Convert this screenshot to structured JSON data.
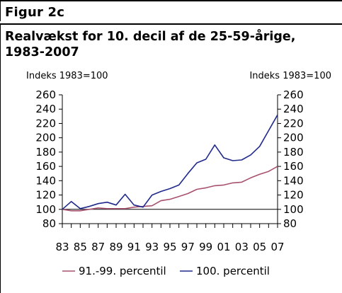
{
  "figure_label": "Figur 2c",
  "title": "Realvækst for 10. decil af de 25-59-årige,\n1983-2007",
  "colors": {
    "series_1": "#a8516e",
    "series_2": "#1f2a8c",
    "axis": "#000000"
  },
  "chart_data": {
    "type": "line",
    "title": "Realvækst for 10. decil af de 25-59-årige, 1983-2007",
    "left_unit_label": "Indeks 1983=100",
    "right_unit_label": "Indeks 1983=100",
    "x": [
      1983,
      1984,
      1985,
      1986,
      1987,
      1988,
      1989,
      1990,
      1991,
      1992,
      1993,
      1994,
      1995,
      1996,
      1997,
      1998,
      1999,
      2000,
      2001,
      2002,
      2003,
      2004,
      2005,
      2006,
      2007
    ],
    "x_tick_labels": [
      "83",
      "85",
      "87",
      "89",
      "91",
      "93",
      "95",
      "97",
      "99",
      "01",
      "03",
      "05",
      "07"
    ],
    "y_ticks": [
      80,
      100,
      120,
      140,
      160,
      180,
      200,
      220,
      240,
      260
    ],
    "ylim": [
      80,
      260
    ],
    "grid": false,
    "baseline": 100,
    "legend_position": "bottom",
    "series": [
      {
        "name": "91.-99. percentil",
        "values": [
          100,
          98,
          98,
          100,
          102,
          101,
          101,
          101,
          103,
          104,
          105,
          112,
          114,
          118,
          122,
          128,
          130,
          133,
          134,
          137,
          138,
          144,
          149,
          153,
          160
        ]
      },
      {
        "name": "100. percentil",
        "values": [
          100,
          111,
          101,
          104,
          108,
          110,
          106,
          121,
          106,
          103,
          120,
          125,
          129,
          134,
          150,
          165,
          170,
          190,
          172,
          168,
          169,
          176,
          188,
          210,
          232
        ]
      }
    ]
  }
}
